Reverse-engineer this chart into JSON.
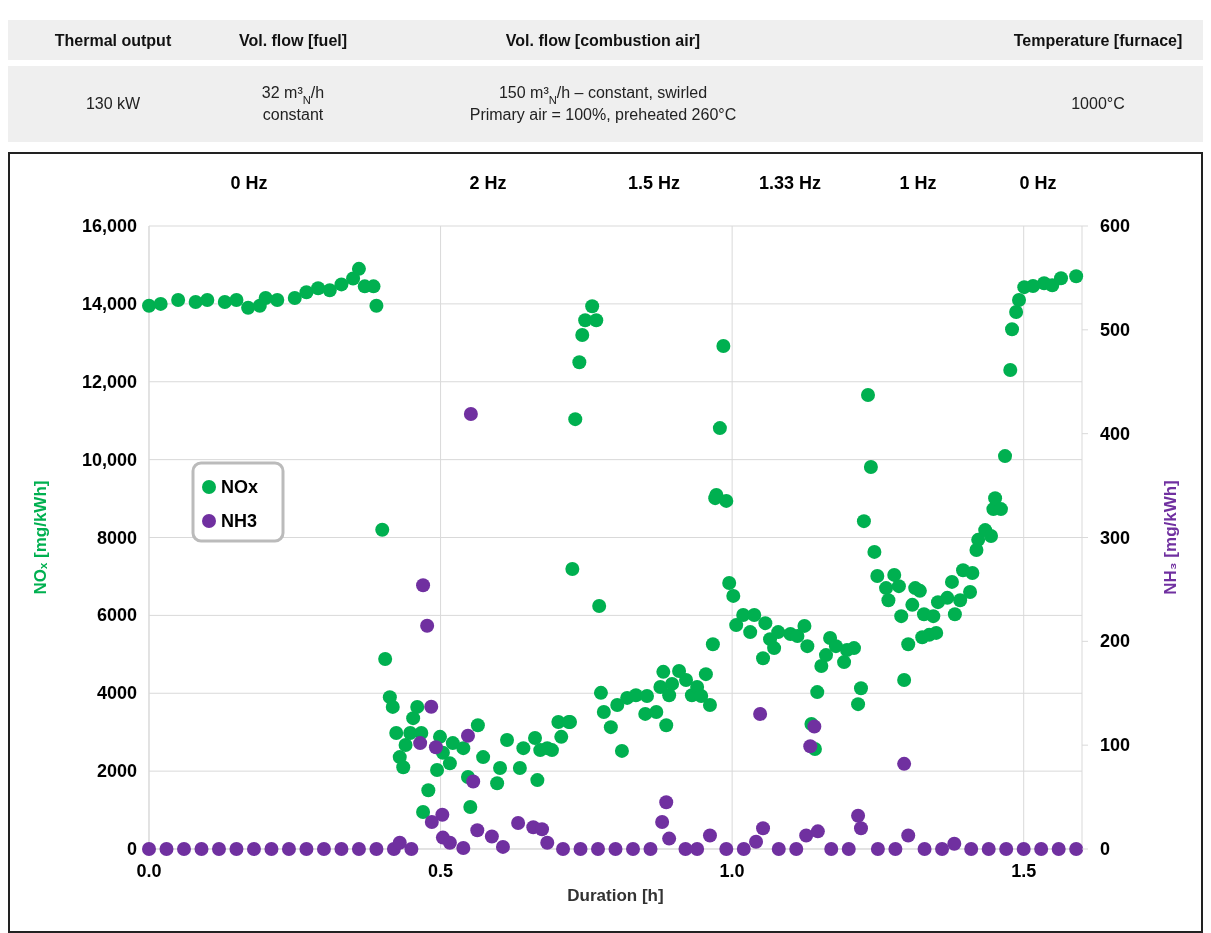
{
  "chart_data": {
    "type": "scatter",
    "annotations": [
      "Thermal output",
      "Vol. flow [fuel]",
      "Vol. flow [combustion air]",
      "Temperature [furnace]",
      "130 kW",
      "32 m³$_{N}$/h\nconstant",
      "150 m³$_{N}$/h – constant, swirled\nPrimary air = 100%, preheated 260°C",
      "1000°C",
      "0 Hz",
      "2 Hz",
      "1.5 Hz",
      "1.33 Hz",
      "1 Hz",
      "0 Hz"
    ],
    "xlabel": "Duration [h]",
    "ylabel": "NOₓ [mg/kWh]",
    "y2label": "NH₃ [mg/kWh]",
    "xlim": [
      0,
      1.6
    ],
    "xticks": [
      {
        "value": 0,
        "label": "0.0"
      },
      0.5,
      {
        "value": 1,
        "label": "1.0"
      },
      1.5
    ],
    "ylim": [
      0,
      16000
    ],
    "yticks": [
      0,
      2000,
      4000,
      6000,
      8000,
      {
        "value": 10000,
        "label": "10,000"
      },
      {
        "value": 12000,
        "label": "12,000"
      },
      {
        "value": 14000,
        "label": "14,000"
      },
      {
        "value": 16000,
        "label": "16,000"
      }
    ],
    "y2lim": [
      0,
      600
    ],
    "y2ticks": [
      0,
      100,
      200,
      300,
      400,
      500,
      600
    ],
    "grid": true,
    "legend": "left",
    "marker": "circle",
    "series": [
      {
        "name": "NOx",
        "color": "#00b050",
        "x": [
          0,
          0.02,
          0.05,
          0.08,
          0.1,
          0.13,
          0.15,
          0.17,
          0.19,
          0.2,
          0.22,
          0.25,
          0.27,
          0.29,
          0.31,
          0.33,
          0.35,
          0.36,
          0.37,
          0.385,
          0.39,
          0.4,
          0.405,
          0.413,
          0.418,
          0.424,
          0.43,
          0.436,
          0.44,
          0.448,
          0.453,
          0.46,
          0.467,
          0.47,
          0.479,
          0.494,
          0.499,
          0.504,
          0.516,
          0.521,
          0.539,
          0.551,
          0.547,
          0.564,
          0.573,
          0.597,
          0.602,
          0.614,
          0.636,
          0.642,
          0.666,
          0.662,
          0.671,
          0.683,
          0.691,
          0.707,
          0.702,
          0.722,
          0.72,
          0.726,
          0.731,
          0.738,
          0.743,
          0.748,
          0.76,
          0.767,
          0.772,
          0.775,
          0.78,
          0.792,
          0.811,
          0.803,
          0.82,
          0.835,
          0.851,
          0.854,
          0.87,
          0.877,
          0.882,
          0.887,
          0.892,
          0.897,
          0.909,
          0.921,
          0.931,
          0.94,
          0.947,
          0.955,
          0.962,
          0.967,
          0.971,
          0.973,
          0.979,
          0.985,
          0.99,
          0.995,
          1.002,
          1.007,
          1.019,
          1.031,
          1.038,
          1.057,
          1.053,
          1.065,
          1.072,
          1.079,
          1.1,
          1.112,
          1.124,
          1.129,
          1.146,
          1.136,
          1.142,
          1.153,
          1.161,
          1.168,
          1.178,
          1.192,
          1.197,
          1.209,
          1.216,
          1.221,
          1.226,
          1.233,
          1.238,
          1.244,
          1.249,
          1.264,
          1.268,
          1.278,
          1.286,
          1.29,
          1.295,
          1.302,
          1.309,
          1.314,
          1.322,
          1.326,
          1.329,
          1.338,
          1.345,
          1.35,
          1.353,
          1.369,
          1.377,
          1.382,
          1.391,
          1.396,
          1.408,
          1.412,
          1.419,
          1.422,
          1.434,
          1.444,
          1.448,
          1.451,
          1.461,
          1.468,
          1.477,
          1.48,
          1.487,
          1.492,
          1.501,
          1.516,
          1.535,
          1.549,
          1.564,
          1.59
        ],
        "values": [
          13950,
          14000,
          14100,
          14050,
          14100,
          14050,
          14100,
          13900,
          13950,
          14150,
          14100,
          14150,
          14300,
          14400,
          14350,
          14500,
          14650,
          14900,
          14450,
          14450,
          13950,
          8200,
          4880,
          3900,
          3650,
          2980,
          2360,
          2100,
          2670,
          2980,
          3360,
          3650,
          2980,
          950,
          1510,
          2030,
          2880,
          2470,
          2200,
          2720,
          2590,
          1080,
          1850,
          3180,
          2360,
          1690,
          2080,
          2800,
          2080,
          2590,
          1770,
          2850,
          2540,
          2590,
          2540,
          2880,
          3260,
          3260,
          3260,
          7190,
          11040,
          12500,
          13200,
          13580,
          13940,
          13580,
          6240,
          4010,
          3520,
          3130,
          2520,
          3700,
          3880,
          3950,
          3470,
          3930,
          3520,
          4160,
          4550,
          3180,
          3950,
          4240,
          4570,
          4340,
          3950,
          4160,
          3930,
          4490,
          3700,
          5260,
          9010,
          9090,
          10810,
          12920,
          8940,
          6830,
          6500,
          5750,
          6010,
          5570,
          6010,
          5800,
          4900,
          5390,
          5160,
          5570,
          5520,
          5470,
          5730,
          5210,
          4030,
          3210,
          2570,
          4700,
          4980,
          5420,
          5210,
          4800,
          5110,
          5160,
          3720,
          4130,
          8420,
          11660,
          9810,
          7630,
          7010,
          6700,
          6390,
          7040,
          6750,
          5980,
          4340,
          5260,
          6270,
          6700,
          6630,
          5440,
          6030,
          5500,
          5980,
          5550,
          6340,
          6450,
          6860,
          6030,
          6390,
          7160,
          6600,
          7090,
          7680,
          7940,
          8190,
          8040,
          8730,
          9010,
          8730,
          10090,
          12300,
          13350,
          13790,
          14100,
          14430,
          14460,
          14530,
          14480,
          14660,
          14710
        ]
      },
      {
        "name": "NH3",
        "color": "#7030a0",
        "axis": "y2",
        "x": [
          0,
          0.03,
          0.06,
          0.09,
          0.12,
          0.15,
          0.18,
          0.21,
          0.24,
          0.27,
          0.3,
          0.33,
          0.36,
          0.39,
          0.42,
          0.43,
          0.45,
          0.465,
          0.47,
          0.477,
          0.484,
          0.485,
          0.492,
          0.503,
          0.504,
          0.516,
          0.539,
          0.547,
          0.552,
          0.556,
          0.563,
          0.588,
          0.607,
          0.633,
          0.659,
          0.674,
          0.683,
          0.71,
          0.74,
          0.77,
          0.8,
          0.83,
          0.86,
          0.88,
          0.887,
          0.892,
          0.92,
          0.94,
          0.962,
          0.99,
          1.02,
          1.041,
          1.048,
          1.053,
          1.08,
          1.11,
          1.127,
          1.134,
          1.141,
          1.147,
          1.17,
          1.2,
          1.216,
          1.221,
          1.25,
          1.28,
          1.295,
          1.302,
          1.33,
          1.36,
          1.381,
          1.41,
          1.44,
          1.47,
          1.5,
          1.53,
          1.56,
          1.59
        ],
        "values": [
          0,
          0,
          0,
          0,
          0,
          0,
          0,
          0,
          0,
          0,
          0,
          0,
          0,
          0,
          0,
          6,
          0,
          102,
          254,
          215,
          137,
          26,
          98,
          33,
          11,
          6,
          1,
          109,
          419,
          65,
          18,
          12,
          2,
          25,
          21,
          19,
          6,
          0,
          0,
          0,
          0,
          0,
          0,
          26,
          45,
          10,
          0,
          0,
          13,
          0,
          0,
          7,
          130,
          20,
          0,
          0,
          13,
          99,
          118,
          17,
          0,
          0,
          32,
          20,
          0,
          0,
          82,
          13,
          0,
          0,
          5,
          0,
          0,
          0,
          0,
          0,
          0,
          0
        ]
      }
    ]
  }
}
